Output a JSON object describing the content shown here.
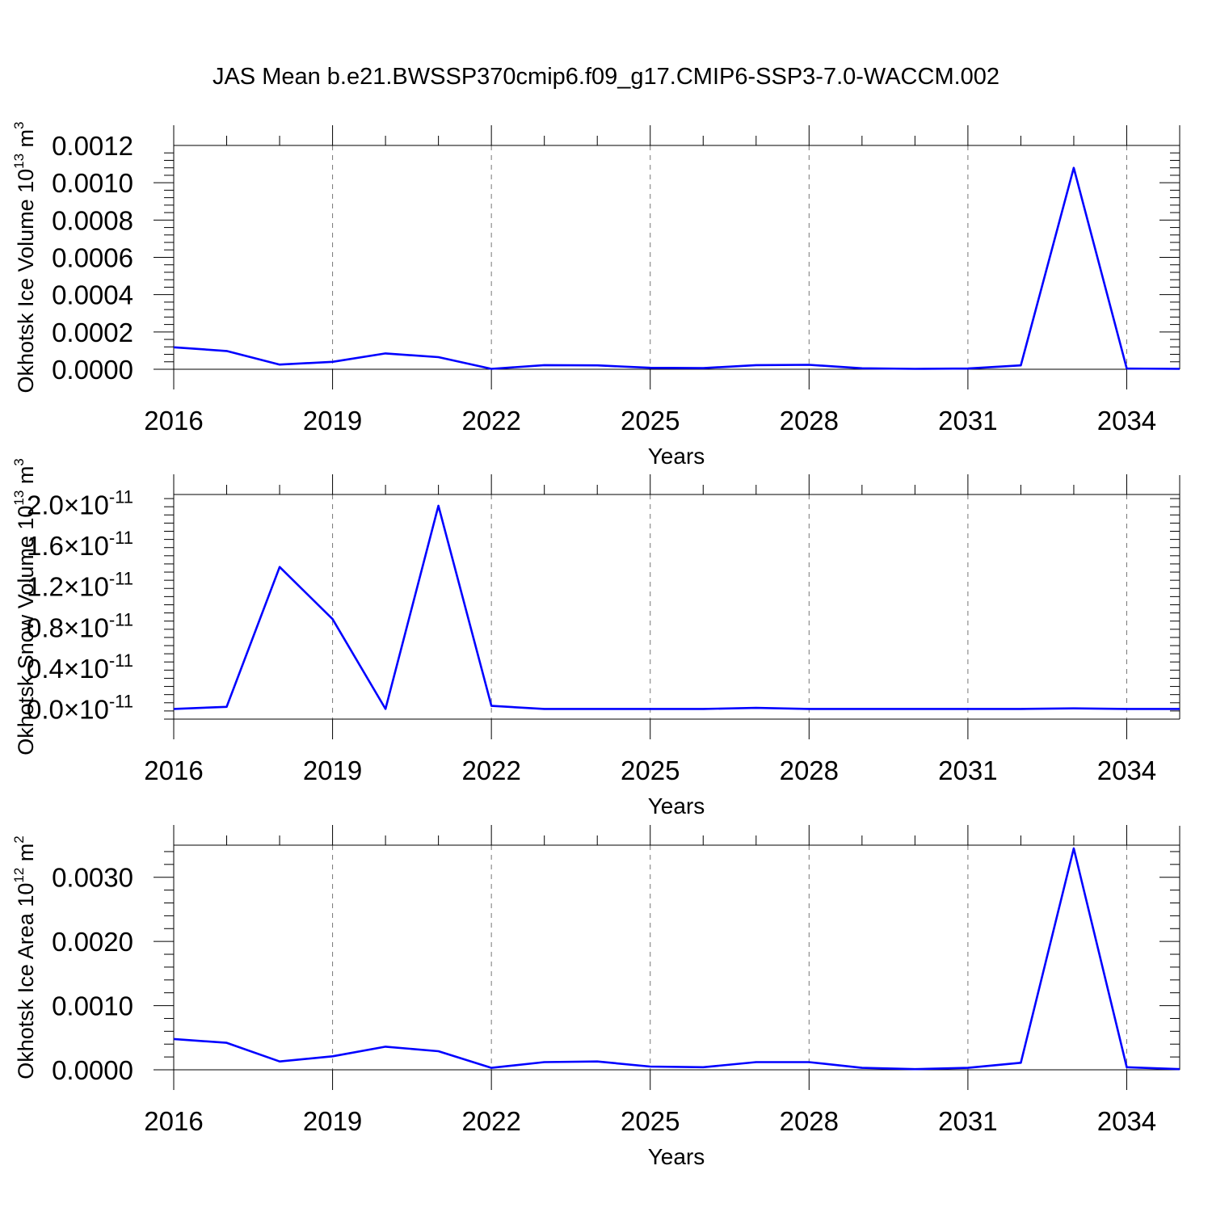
{
  "title": "JAS Mean b.e21.BWSSP370cmip6.f09_g17.CMIP6-SSP3-7.0-WACCM.002",
  "colors": {
    "line": "#0000ff",
    "axis": "#000000",
    "grid": "#777777"
  },
  "chart_data": [
    {
      "type": "line",
      "xlabel": "Years",
      "ylabel": "Okhotsk Ice Volume",
      "ylabel_unit": "10",
      "ylabel_exp": "13",
      "ylabel_m": "m",
      "ylabel_pow": "3",
      "xlim": [
        2016,
        2035
      ],
      "ylim": [
        0,
        0.0012
      ],
      "xticks": [
        2016,
        2019,
        2022,
        2025,
        2028,
        2031,
        2034
      ],
      "xtick_labels": [
        "2016",
        "2019",
        "2022",
        "2025",
        "2028",
        "2031",
        "2034"
      ],
      "yticks": [
        0,
        0.0002,
        0.0004,
        0.0006,
        0.0008,
        0.001,
        0.0012
      ],
      "ytick_labels": [
        "0.0000",
        "0.0002",
        "0.0004",
        "0.0006",
        "0.0008",
        "0.0010",
        "0.0012"
      ],
      "grid": "vertical dashed",
      "x": [
        2016,
        2017,
        2018,
        2019,
        2020,
        2021,
        2022,
        2023,
        2024,
        2025,
        2026,
        2027,
        2028,
        2029,
        2030,
        2031,
        2032,
        2033,
        2034,
        2035
      ],
      "values": [
        0.000118,
        9.8e-05,
        2.5e-05,
        4e-05,
        8.5e-05,
        6.5e-05,
        2e-06,
        2.2e-05,
        2.1e-05,
        8e-06,
        6e-06,
        2.2e-05,
        2.4e-05,
        5e-06,
        2e-06,
        4e-06,
        2.1e-05,
        0.00108,
        4e-06,
        2e-06
      ]
    },
    {
      "type": "line",
      "xlabel": "Years",
      "ylabel": "Okhotsk Snow Volume",
      "ylabel_unit": "10",
      "ylabel_exp": "13",
      "ylabel_m": "m",
      "ylabel_pow": "3",
      "xlim": [
        2016,
        2035
      ],
      "ylim": [
        -1e-12,
        2.1e-11
      ],
      "xticks": [
        2016,
        2019,
        2022,
        2025,
        2028,
        2031,
        2034
      ],
      "xtick_labels": [
        "2016",
        "2019",
        "2022",
        "2025",
        "2028",
        "2031",
        "2034"
      ],
      "yticks": [
        0,
        4e-12,
        8e-12,
        1.2e-11,
        1.6e-11,
        2e-11
      ],
      "ytick_mantissas": [
        "0.0",
        "0.4",
        "0.8",
        "1.2",
        "1.6",
        "2.0"
      ],
      "ytick_times": "×10",
      "ytick_exp": "-11",
      "grid": "vertical dashed",
      "x": [
        2016,
        2017,
        2018,
        2019,
        2020,
        2021,
        2022,
        2023,
        2024,
        2025,
        2026,
        2027,
        2028,
        2029,
        2030,
        2031,
        2032,
        2033,
        2034,
        2035
      ],
      "values": [
        0.0,
        2e-13,
        1.39e-11,
        8.8e-12,
        0.0,
        1.99e-11,
        3e-13,
        0.0,
        0.0,
        0.0,
        0.0,
        1e-13,
        0.0,
        0.0,
        0.0,
        0.0,
        0.0,
        5e-14,
        0.0,
        0.0
      ]
    },
    {
      "type": "line",
      "xlabel": "Years",
      "ylabel": "Okhotsk Ice Area",
      "ylabel_unit": "10",
      "ylabel_exp": "12",
      "ylabel_m": "m",
      "ylabel_pow": "2",
      "xlim": [
        2016,
        2035
      ],
      "ylim": [
        0,
        0.0035
      ],
      "xticks": [
        2016,
        2019,
        2022,
        2025,
        2028,
        2031,
        2034
      ],
      "xtick_labels": [
        "2016",
        "2019",
        "2022",
        "2025",
        "2028",
        "2031",
        "2034"
      ],
      "yticks": [
        0,
        0.001,
        0.002,
        0.003
      ],
      "ytick_labels": [
        "0.0000",
        "0.0010",
        "0.0020",
        "0.0030"
      ],
      "grid": "vertical dashed",
      "x": [
        2016,
        2017,
        2018,
        2019,
        2020,
        2021,
        2022,
        2023,
        2024,
        2025,
        2026,
        2027,
        2028,
        2029,
        2030,
        2031,
        2032,
        2033,
        2034,
        2035
      ],
      "values": [
        0.00048,
        0.00042,
        0.00013,
        0.00021,
        0.00036,
        0.00029,
        3e-05,
        0.00012,
        0.00013,
        5e-05,
        4e-05,
        0.00012,
        0.00012,
        3e-05,
        1e-05,
        3e-05,
        0.00011,
        0.00345,
        4e-05,
        1e-05
      ]
    }
  ]
}
